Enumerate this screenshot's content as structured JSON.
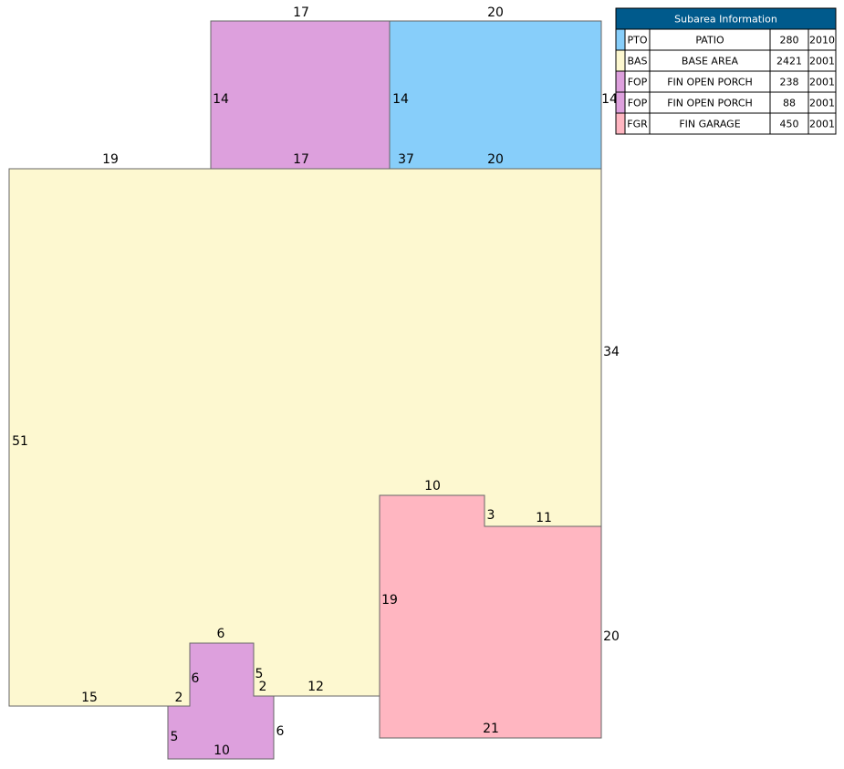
{
  "sketch": {
    "labels": [
      "17",
      "20",
      "14",
      "14",
      "14",
      "19",
      "17",
      "37",
      "20",
      "34",
      "51",
      "10",
      "3",
      "11",
      "19",
      "20",
      "6",
      "6",
      "5",
      "2",
      "12",
      "15",
      "2",
      "5",
      "10",
      "6",
      "21"
    ]
  },
  "table": {
    "title": "Subarea Information",
    "rows": [
      [
        "PTO",
        "PATIO",
        "280",
        "2010"
      ],
      [
        "BAS",
        "BASE AREA",
        "2421",
        "2001"
      ],
      [
        "FOP",
        "FIN OPEN PORCH",
        "238",
        "2001"
      ],
      [
        "FOP",
        "FIN OPEN PORCH",
        "88",
        "2001"
      ],
      [
        "FGR",
        "FIN GARAGE",
        "450",
        "2001"
      ]
    ]
  }
}
